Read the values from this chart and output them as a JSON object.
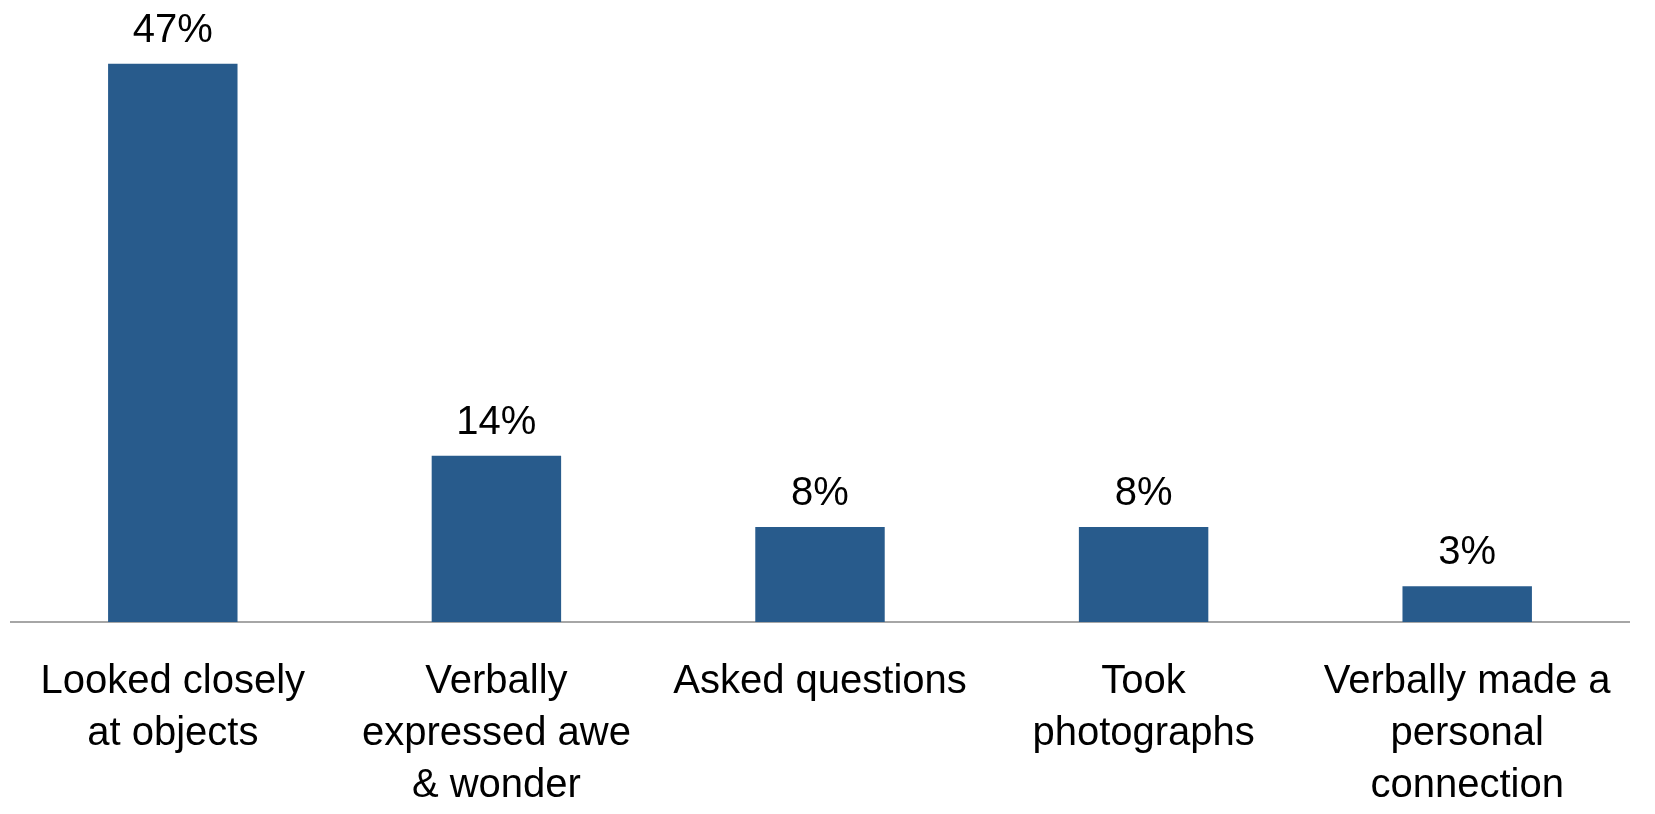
{
  "chart_data": {
    "type": "bar",
    "categories": [
      "Looked closely\nat objects",
      "Verbally\nexpressed awe\n& wonder",
      "Asked questions",
      "Took\nphotographs",
      "Verbally made a\npersonal\nconnection"
    ],
    "values": [
      47,
      14,
      8,
      8,
      3
    ],
    "value_labels": [
      "47%",
      "14%",
      "8%",
      "8%",
      "3%"
    ],
    "color": "#285b8c"
  }
}
